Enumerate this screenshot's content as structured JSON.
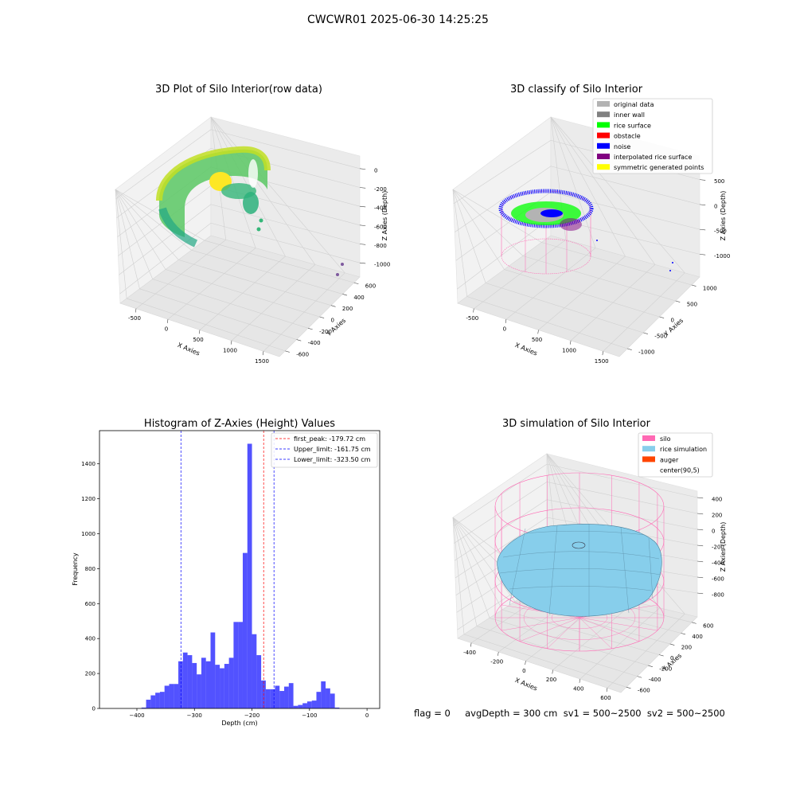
{
  "figure": {
    "suptitle": "CWCWR01 2025-06-30 14:25:25",
    "footer": "flag = 0     avgDepth = 300 cm  sv1 = 500~2500  sv2 = 500~2500"
  },
  "panels": {
    "raw": {
      "title": "3D Plot of Silo Interior(row data)",
      "xlabel": "X Axies",
      "ylabel": "Y Axies",
      "zlabel": "Z Axies (Depth)",
      "xticks": [
        "-500",
        "0",
        "500",
        "1000",
        "1500"
      ],
      "yticks": [
        "600",
        "400",
        "200",
        "0",
        "-200",
        "-400",
        "-600"
      ],
      "zticks": [
        "0",
        "-200",
        "-400",
        "-600",
        "-800",
        "-1000"
      ]
    },
    "classify": {
      "title": "3D classify of Silo Interior",
      "xlabel": "X Axies",
      "ylabel": "Y Axies",
      "zlabel": "Z Axies (Depth)",
      "xticks": [
        "-500",
        "0",
        "500",
        "1000",
        "1500"
      ],
      "yticks": [
        "1000",
        "500",
        "0",
        "-500",
        "-1000"
      ],
      "zticks": [
        "500",
        "0",
        "-500",
        "-1000"
      ],
      "legend": [
        {
          "label": "original data",
          "color": "#b3b3b3"
        },
        {
          "label": "inner wall",
          "color": "#808080"
        },
        {
          "label": "rice surface",
          "color": "#00ff00"
        },
        {
          "label": "obstacle",
          "color": "#ff0000"
        },
        {
          "label": "noise",
          "color": "#0000ff"
        },
        {
          "label": "interpolated rice surface",
          "color": "#800080"
        },
        {
          "label": "symmetric generated points",
          "color": "#ffff00"
        }
      ]
    },
    "simulation": {
      "title": "3D simulation of Silo Interior",
      "xlabel": "X Axies",
      "ylabel": "Y Axies",
      "zlabel": "Z Axies (Depth)",
      "xticks": [
        "-400",
        "-200",
        "0",
        "200",
        "400",
        "600"
      ],
      "yticks": [
        "600",
        "400",
        "200",
        "0",
        "-200",
        "-400",
        "-600"
      ],
      "zticks": [
        "400",
        "200",
        "0",
        "-200",
        "-400",
        "-600",
        "-800"
      ],
      "legend": [
        {
          "label": "silo",
          "color": "#ff69b4"
        },
        {
          "label": "rice simulation",
          "color": "#87ceeb"
        },
        {
          "label": "auger",
          "color": "#ff4500"
        },
        {
          "label": "center(90,5)",
          "color": "#ffffff"
        }
      ]
    }
  },
  "chart_data": {
    "type": "bar",
    "title": "Histogram of Z-Axies (Height) Values",
    "xlabel": "Depth (cm)",
    "ylabel": "Frequency",
    "xlim": [
      -465,
      22
    ],
    "ylim": [
      0,
      1590
    ],
    "xticks": [
      -400,
      -300,
      -200,
      -100,
      0
    ],
    "yticks": [
      0,
      200,
      400,
      600,
      800,
      1000,
      1200,
      1400
    ],
    "bar_color": "#0000ff",
    "bin_width": 8,
    "bin_start": -392,
    "values": [
      5,
      50,
      75,
      90,
      95,
      130,
      140,
      140,
      270,
      320,
      305,
      260,
      195,
      290,
      270,
      435,
      250,
      230,
      255,
      290,
      495,
      495,
      890,
      1515,
      425,
      305,
      160,
      110,
      110,
      130,
      100,
      125,
      145,
      15,
      20,
      30,
      40,
      45,
      95,
      155,
      115,
      85,
      5
    ],
    "lines": [
      {
        "name": "first_peak: -179.72 cm",
        "x": -179.72,
        "color": "#ff0000"
      },
      {
        "name": "Upper_limit: -161.75 cm",
        "x": -161.75,
        "color": "#0000ff"
      },
      {
        "name": "Lower_limit: -323.50 cm",
        "x": -323.5,
        "color": "#0000ff"
      }
    ],
    "legend_position": "top-right"
  }
}
